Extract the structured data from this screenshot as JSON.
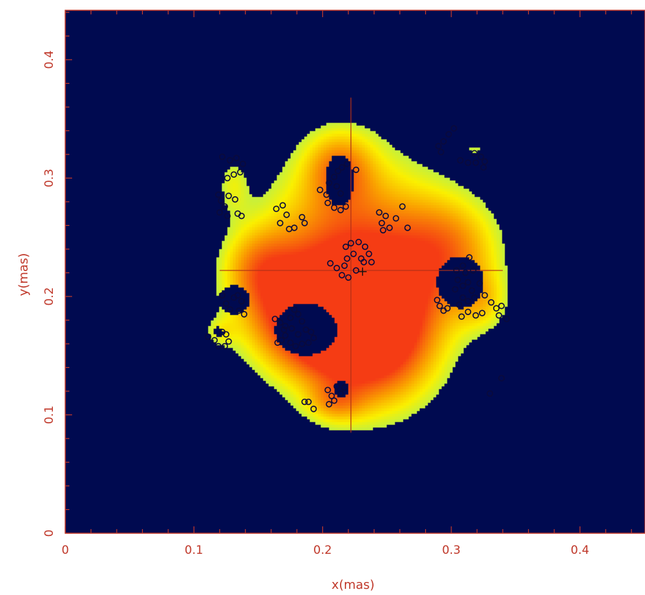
{
  "chart_data": {
    "type": "heatmap",
    "xlabel": "x(mas)",
    "ylabel": "y(mas)",
    "xlim": [
      0,
      0.45
    ],
    "ylim": [
      0,
      0.45
    ],
    "x_ticks": [
      "0",
      "0.1",
      "0.2",
      "0.3",
      "0.4"
    ],
    "x_tick_values": [
      0,
      0.1,
      0.2,
      0.3,
      0.4
    ],
    "y_ticks": [
      "0",
      "0.1",
      "0.2",
      "0.3",
      "0.4"
    ],
    "y_tick_values": [
      0,
      0.1,
      0.2,
      0.3,
      0.4
    ],
    "grid": false,
    "colors": {
      "background": "#000a50",
      "axis": "#c0392b",
      "marker": "#0a0a3c",
      "crosshair": "#b03018"
    },
    "crosshair": {
      "x": 0.222,
      "y": 0.222,
      "x_range": [
        0.12,
        0.34
      ],
      "y_range": [
        0.085,
        0.368
      ]
    },
    "center_marker": {
      "x": 0.231,
      "y": 0.221
    },
    "intensity_blobs": [
      {
        "x": 0.222,
        "y": 0.225,
        "rx": 0.085,
        "ry": 0.115,
        "weight": 1.0
      },
      {
        "x": 0.24,
        "y": 0.165,
        "rx": 0.06,
        "ry": 0.07,
        "weight": 0.85
      },
      {
        "x": 0.19,
        "y": 0.18,
        "rx": 0.06,
        "ry": 0.05,
        "weight": 0.75
      },
      {
        "x": 0.3,
        "y": 0.24,
        "rx": 0.05,
        "ry": 0.055,
        "weight": 0.6
      },
      {
        "x": 0.15,
        "y": 0.225,
        "rx": 0.035,
        "ry": 0.04,
        "weight": 0.5
      },
      {
        "x": 0.325,
        "y": 0.195,
        "rx": 0.025,
        "ry": 0.03,
        "weight": 0.35
      },
      {
        "x": 0.13,
        "y": 0.295,
        "rx": 0.015,
        "ry": 0.03,
        "weight": 0.3
      },
      {
        "x": 0.32,
        "y": 0.325,
        "rx": 0.02,
        "ry": 0.012,
        "weight": 0.25
      },
      {
        "x": 0.12,
        "y": 0.17,
        "rx": 0.015,
        "ry": 0.015,
        "weight": 0.25
      },
      {
        "x": 0.213,
        "y": 0.31,
        "rx": 0.03,
        "ry": 0.035,
        "weight": 0.5
      },
      {
        "x": 0.21,
        "y": 0.11,
        "rx": 0.025,
        "ry": 0.02,
        "weight": 0.35
      }
    ],
    "holes": [
      {
        "x": 0.187,
        "y": 0.172,
        "rx": 0.024,
        "ry": 0.022
      },
      {
        "x": 0.131,
        "y": 0.197,
        "rx": 0.012,
        "ry": 0.012
      },
      {
        "x": 0.213,
        "y": 0.298,
        "rx": 0.011,
        "ry": 0.022
      },
      {
        "x": 0.215,
        "y": 0.122,
        "rx": 0.006,
        "ry": 0.007
      },
      {
        "x": 0.307,
        "y": 0.212,
        "rx": 0.018,
        "ry": 0.022
      },
      {
        "x": 0.119,
        "y": 0.17,
        "rx": 0.004,
        "ry": 0.004
      }
    ],
    "points": [
      [
        0.122,
        0.318
      ],
      [
        0.128,
        0.315
      ],
      [
        0.133,
        0.317
      ],
      [
        0.138,
        0.312
      ],
      [
        0.131,
        0.303
      ],
      [
        0.126,
        0.3
      ],
      [
        0.136,
        0.305
      ],
      [
        0.119,
        0.286
      ],
      [
        0.121,
        0.281
      ],
      [
        0.124,
        0.276
      ],
      [
        0.12,
        0.271
      ],
      [
        0.126,
        0.268
      ],
      [
        0.134,
        0.27
      ],
      [
        0.137,
        0.268
      ],
      [
        0.127,
        0.285
      ],
      [
        0.132,
        0.282
      ],
      [
        0.164,
        0.274
      ],
      [
        0.169,
        0.277
      ],
      [
        0.167,
        0.262
      ],
      [
        0.172,
        0.269
      ],
      [
        0.174,
        0.257
      ],
      [
        0.178,
        0.258
      ],
      [
        0.184,
        0.267
      ],
      [
        0.186,
        0.262
      ],
      [
        0.198,
        0.29
      ],
      [
        0.203,
        0.286
      ],
      [
        0.205,
        0.296
      ],
      [
        0.209,
        0.301
      ],
      [
        0.212,
        0.306
      ],
      [
        0.215,
        0.309
      ],
      [
        0.219,
        0.312
      ],
      [
        0.226,
        0.307
      ],
      [
        0.211,
        0.293
      ],
      [
        0.214,
        0.287
      ],
      [
        0.204,
        0.279
      ],
      [
        0.209,
        0.275
      ],
      [
        0.214,
        0.273
      ],
      [
        0.218,
        0.276
      ],
      [
        0.244,
        0.271
      ],
      [
        0.249,
        0.268
      ],
      [
        0.246,
        0.262
      ],
      [
        0.252,
        0.258
      ],
      [
        0.257,
        0.266
      ],
      [
        0.262,
        0.276
      ],
      [
        0.266,
        0.258
      ],
      [
        0.247,
        0.256
      ],
      [
        0.218,
        0.242
      ],
      [
        0.222,
        0.245
      ],
      [
        0.228,
        0.246
      ],
      [
        0.233,
        0.242
      ],
      [
        0.236,
        0.236
      ],
      [
        0.23,
        0.232
      ],
      [
        0.224,
        0.236
      ],
      [
        0.219,
        0.232
      ],
      [
        0.206,
        0.228
      ],
      [
        0.211,
        0.224
      ],
      [
        0.215,
        0.218
      ],
      [
        0.22,
        0.216
      ],
      [
        0.226,
        0.222
      ],
      [
        0.232,
        0.229
      ],
      [
        0.238,
        0.229
      ],
      [
        0.217,
        0.226
      ],
      [
        0.29,
        0.327
      ],
      [
        0.294,
        0.331
      ],
      [
        0.298,
        0.337
      ],
      [
        0.302,
        0.342
      ],
      [
        0.292,
        0.322
      ],
      [
        0.307,
        0.315
      ],
      [
        0.313,
        0.313
      ],
      [
        0.319,
        0.313
      ],
      [
        0.323,
        0.318
      ],
      [
        0.326,
        0.314
      ],
      [
        0.325,
        0.309
      ],
      [
        0.318,
        0.321
      ],
      [
        0.314,
        0.233
      ],
      [
        0.309,
        0.226
      ],
      [
        0.304,
        0.222
      ],
      [
        0.311,
        0.22
      ],
      [
        0.317,
        0.222
      ],
      [
        0.305,
        0.214
      ],
      [
        0.309,
        0.209
      ],
      [
        0.303,
        0.206
      ],
      [
        0.313,
        0.212
      ],
      [
        0.316,
        0.205
      ],
      [
        0.318,
        0.199
      ],
      [
        0.313,
        0.196
      ],
      [
        0.309,
        0.199
      ],
      [
        0.306,
        0.193
      ],
      [
        0.322,
        0.211
      ],
      [
        0.326,
        0.201
      ],
      [
        0.331,
        0.195
      ],
      [
        0.335,
        0.19
      ],
      [
        0.337,
        0.184
      ],
      [
        0.343,
        0.181
      ],
      [
        0.339,
        0.192
      ],
      [
        0.324,
        0.186
      ],
      [
        0.319,
        0.184
      ],
      [
        0.313,
        0.187
      ],
      [
        0.308,
        0.183
      ],
      [
        0.289,
        0.197
      ],
      [
        0.291,
        0.192
      ],
      [
        0.294,
        0.188
      ],
      [
        0.297,
        0.19
      ],
      [
        0.122,
        0.201
      ],
      [
        0.125,
        0.194
      ],
      [
        0.128,
        0.189
      ],
      [
        0.131,
        0.199
      ],
      [
        0.134,
        0.201
      ],
      [
        0.137,
        0.196
      ],
      [
        0.135,
        0.188
      ],
      [
        0.139,
        0.185
      ],
      [
        0.111,
        0.166
      ],
      [
        0.116,
        0.163
      ],
      [
        0.119,
        0.158
      ],
      [
        0.122,
        0.17
      ],
      [
        0.125,
        0.168
      ],
      [
        0.127,
        0.162
      ],
      [
        0.124,
        0.158
      ],
      [
        0.163,
        0.181
      ],
      [
        0.167,
        0.178
      ],
      [
        0.171,
        0.175
      ],
      [
        0.175,
        0.182
      ],
      [
        0.178,
        0.189
      ],
      [
        0.181,
        0.185
      ],
      [
        0.184,
        0.179
      ],
      [
        0.187,
        0.172
      ],
      [
        0.191,
        0.17
      ],
      [
        0.193,
        0.165
      ],
      [
        0.189,
        0.161
      ],
      [
        0.184,
        0.16
      ],
      [
        0.179,
        0.158
      ],
      [
        0.175,
        0.161
      ],
      [
        0.171,
        0.167
      ],
      [
        0.168,
        0.163
      ],
      [
        0.165,
        0.161
      ],
      [
        0.17,
        0.172
      ],
      [
        0.176,
        0.173
      ],
      [
        0.181,
        0.168
      ],
      [
        0.204,
        0.121
      ],
      [
        0.207,
        0.116
      ],
      [
        0.211,
        0.124
      ],
      [
        0.214,
        0.118
      ],
      [
        0.217,
        0.123
      ],
      [
        0.209,
        0.112
      ],
      [
        0.205,
        0.109
      ],
      [
        0.193,
        0.105
      ],
      [
        0.189,
        0.111
      ],
      [
        0.186,
        0.111
      ],
      [
        0.33,
        0.118
      ],
      [
        0.339,
        0.131
      ]
    ]
  }
}
